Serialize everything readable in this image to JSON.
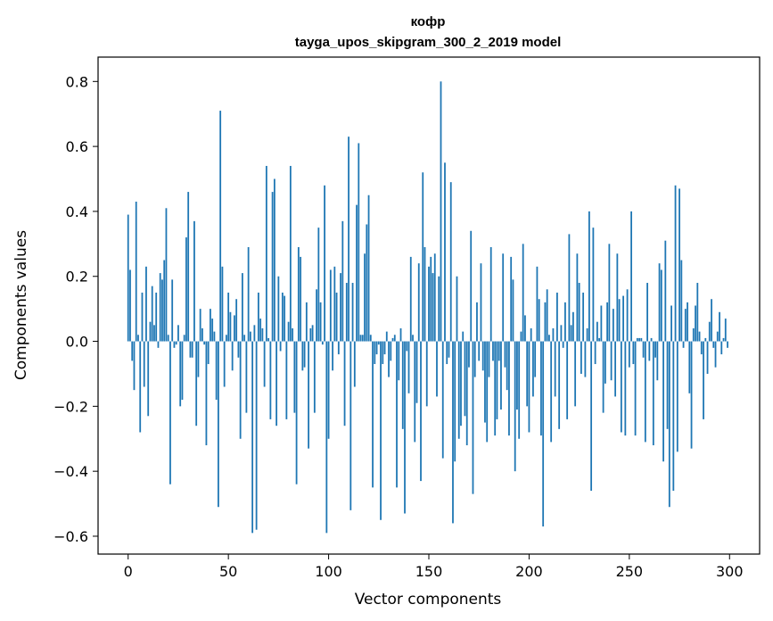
{
  "chart_data": {
    "type": "bar",
    "title": "кофр",
    "subtitle": "tayga_upos_skipgram_300_2_2019 model",
    "xlabel": "Vector components",
    "ylabel": "Components values",
    "xlim": [
      -15,
      315
    ],
    "ylim": [
      -0.655,
      0.875
    ],
    "xticks": [
      0,
      50,
      100,
      150,
      200,
      250,
      300
    ],
    "xtick_labels": [
      "0",
      "50",
      "100",
      "150",
      "200",
      "250",
      "300"
    ],
    "yticks": [
      -0.6,
      -0.4,
      -0.2,
      0.0,
      0.2,
      0.4,
      0.6,
      0.8
    ],
    "ytick_labels": [
      "−0.6",
      "−0.4",
      "−0.2",
      "0.0",
      "0.2",
      "0.4",
      "0.6",
      "0.8"
    ],
    "grid": false,
    "bar_color": "#1f77b4",
    "x": "0..299",
    "values": [
      0.39,
      0.22,
      -0.06,
      -0.15,
      0.43,
      0.02,
      -0.28,
      0.15,
      -0.14,
      0.23,
      -0.23,
      0.06,
      0.17,
      0.05,
      0.15,
      -0.02,
      0.21,
      0.19,
      0.25,
      0.41,
      0.02,
      -0.44,
      0.19,
      -0.02,
      -0.01,
      0.05,
      -0.2,
      -0.18,
      0.02,
      0.32,
      0.46,
      -0.05,
      -0.05,
      0.37,
      -0.26,
      -0.11,
      0.1,
      0.04,
      -0.01,
      -0.32,
      -0.07,
      0.1,
      0.07,
      0.03,
      -0.18,
      -0.51,
      0.71,
      0.23,
      -0.14,
      0.02,
      0.15,
      0.09,
      -0.09,
      0.08,
      0.13,
      -0.05,
      -0.3,
      0.21,
      0.02,
      -0.22,
      0.29,
      0.03,
      -0.59,
      0.05,
      -0.58,
      0.15,
      0.07,
      0.04,
      -0.14,
      0.54,
      0.01,
      -0.24,
      0.46,
      0.5,
      -0.26,
      0.2,
      -0.03,
      0.15,
      0.14,
      -0.24,
      0.06,
      0.54,
      0.04,
      -0.22,
      -0.44,
      0.29,
      0.26,
      -0.09,
      -0.08,
      0.12,
      -0.33,
      0.04,
      0.05,
      -0.22,
      0.16,
      0.35,
      0.12,
      -0.01,
      0.48,
      -0.59,
      -0.3,
      0.22,
      -0.09,
      0.23,
      0.15,
      -0.04,
      0.21,
      0.37,
      -0.26,
      0.18,
      0.63,
      -0.52,
      0.18,
      -0.14,
      0.42,
      0.61,
      0.02,
      0.02,
      0.27,
      0.36,
      0.45,
      0.02,
      -0.45,
      -0.07,
      -0.04,
      -0.01,
      -0.55,
      -0.07,
      -0.04,
      0.03,
      -0.11,
      -0.06,
      0.01,
      0.02,
      -0.45,
      -0.12,
      0.04,
      -0.27,
      -0.53,
      -0.03,
      -0.16,
      0.26,
      0.02,
      -0.31,
      -0.19,
      0.24,
      -0.43,
      0.52,
      0.29,
      -0.2,
      0.23,
      0.26,
      0.21,
      0.27,
      -0.17,
      0.2,
      0.8,
      -0.36,
      0.55,
      -0.07,
      -0.05,
      0.49,
      -0.56,
      -0.37,
      0.2,
      -0.3,
      -0.26,
      0.03,
      -0.23,
      -0.32,
      -0.08,
      0.34,
      -0.47,
      -0.11,
      0.12,
      -0.06,
      0.24,
      -0.09,
      -0.25,
      -0.31,
      -0.11,
      0.29,
      -0.06,
      -0.29,
      -0.24,
      -0.06,
      -0.21,
      0.27,
      -0.08,
      -0.15,
      -0.29,
      0.26,
      0.19,
      -0.4,
      -0.21,
      -0.3,
      0.03,
      0.3,
      0.08,
      -0.2,
      -0.28,
      0.04,
      -0.17,
      -0.11,
      0.23,
      0.13,
      -0.29,
      -0.57,
      0.12,
      0.16,
      0.02,
      -0.31,
      0.04,
      -0.17,
      0.15,
      -0.27,
      0.05,
      -0.02,
      0.12,
      -0.24,
      0.33,
      0.05,
      0.09,
      -0.2,
      0.27,
      0.18,
      -0.1,
      0.15,
      -0.11,
      0.04,
      0.4,
      -0.46,
      0.35,
      -0.07,
      0.06,
      0.01,
      0.11,
      -0.22,
      -0.13,
      0.12,
      0.3,
      -0.12,
      0.1,
      -0.17,
      0.27,
      0.13,
      -0.28,
      0.14,
      -0.29,
      0.16,
      -0.08,
      0.4,
      -0.07,
      -0.29,
      0.01,
      0.01,
      0.01,
      -0.05,
      -0.31,
      0.18,
      -0.06,
      0.01,
      -0.32,
      -0.05,
      -0.12,
      0.24,
      0.22,
      -0.37,
      0.31,
      -0.27,
      -0.51,
      0.11,
      -0.46,
      0.48,
      -0.34,
      0.47,
      0.25,
      -0.02,
      0.1,
      0.12,
      -0.16,
      -0.33,
      0.04,
      0.11,
      0.18,
      0.03,
      -0.04,
      -0.24,
      0.01,
      -0.1,
      0.06,
      0.13,
      -0.02,
      -0.08,
      0.03,
      0.09,
      -0.04,
      0.01,
      0.07,
      -0.02
    ]
  }
}
